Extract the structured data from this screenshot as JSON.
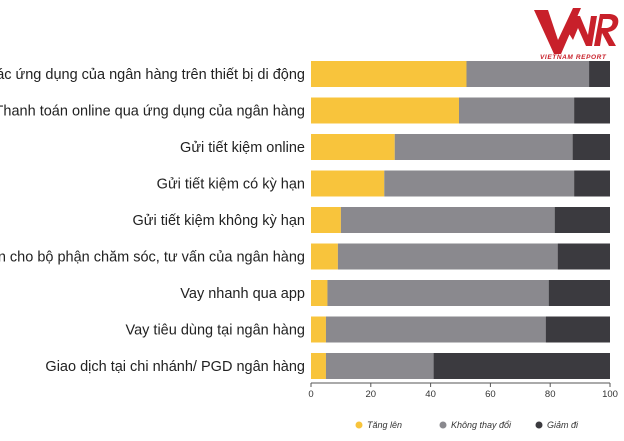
{
  "brand": {
    "logo_text": "VNR",
    "tagline": "VIETNAM REPORT",
    "color": "#c8202a"
  },
  "chart_data": {
    "type": "bar",
    "stacked": true,
    "orientation": "horizontal",
    "categories": [
      "Sử dụng các ứng dụng của ngân hàng trên thiết bị di động",
      "Thanh toán online qua ứng dụng của ngân hàng",
      "Gửi tiết kiệm online",
      "Gửi tiết kiệm có kỳ hạn",
      "Gửi tiết kiệm không kỳ hạn",
      "Gọi điện cho bộ phận chăm sóc, tư vấn của ngân hàng",
      "Vay nhanh qua app",
      "Vay tiêu dùng tại ngân hàng",
      "Giao dịch tại chi nhánh/ PGD ngân hàng"
    ],
    "series": [
      {
        "name": "Tăng lên",
        "color": "#f8c43c",
        "values": [
          52,
          49.5,
          28,
          24.5,
          10,
          9,
          5.5,
          5,
          5
        ]
      },
      {
        "name": "Không thay đổi",
        "color": "#8a898e",
        "values": [
          41,
          38.5,
          59.5,
          63.5,
          71.5,
          73.5,
          74,
          73.5,
          36
        ]
      },
      {
        "name": "Giảm đi",
        "color": "#3b3a3f",
        "values": [
          7,
          12,
          12.5,
          12,
          18.5,
          17.5,
          20.5,
          21.5,
          59
        ]
      }
    ],
    "xlim": [
      0,
      100
    ],
    "xticks": [
      0,
      20,
      40,
      60,
      80,
      100
    ],
    "grid": false,
    "legend_position": "bottom"
  }
}
